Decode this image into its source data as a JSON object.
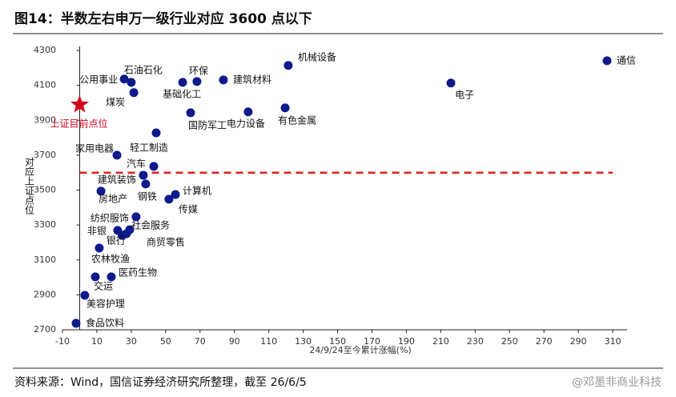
{
  "chart_data": {
    "type": "scatter",
    "title": "图14：半数左右申万一级行业对应 3600 点以下",
    "x_label": "24/9/24至今累计涨幅(%)",
    "y_label": "对应上证点位",
    "source": "资料来源：Wind，国信证券经济研究所整理，截至 26/6/5",
    "watermark": "@邓墨非商业科技",
    "xlim": [
      -10,
      310
    ],
    "xticks": [
      -10,
      10,
      30,
      50,
      70,
      90,
      110,
      130,
      150,
      170,
      190,
      210,
      230,
      250,
      270,
      290,
      310
    ],
    "ylim": [
      2700,
      4300
    ],
    "yticks": [
      2700,
      2900,
      3100,
      3300,
      3500,
      3700,
      3900,
      4100,
      4300
    ],
    "reference_line": {
      "value": 3600,
      "color": "#e02020"
    },
    "marker_point": {
      "label": "上证目前点位",
      "x": 0,
      "y": 3989,
      "color": "#d0021b"
    },
    "series": [
      {
        "color": "#0d1a8c",
        "labels": [
          "通信",
          "电子",
          "机械设备",
          "建筑材料",
          "环保",
          "基础化工",
          "石油石化",
          "公用事业",
          "煤炭",
          "国防军工",
          "电力设备",
          "有色金属",
          "轻工制造",
          "家用电器",
          "汽车",
          "建筑装饰",
          "钢铁",
          "计算机",
          "传媒",
          "房地产",
          "纺织服饰",
          "社会服务",
          "非银",
          "银行",
          "商贸零售",
          "农林牧渔",
          "交运",
          "医药生物",
          "美容护理",
          "食品饮料"
        ],
        "x": [
          306.7,
          215.9,
          121.3,
          83.6,
          68.2,
          59.9,
          30,
          25.9,
          31.5,
          64.5,
          98,
          119.5,
          44.5,
          21.7,
          43.1,
          37,
          38.4,
          55.7,
          51.9,
          12.4,
          32.8,
          29.1,
          22.1,
          24.8,
          27.2,
          11.4,
          9.1,
          18.4,
          3,
          -2.1
        ],
        "values": [
          4241,
          4113,
          4214,
          4131,
          4122,
          4117,
          4117,
          4136,
          4058,
          3943,
          3948,
          3971,
          3828,
          3700,
          3636,
          3585,
          3535,
          3475,
          3448,
          3494,
          3347,
          3273,
          3269,
          3241,
          3250,
          3168,
          3003,
          3003,
          2897,
          2737
        ]
      }
    ]
  }
}
